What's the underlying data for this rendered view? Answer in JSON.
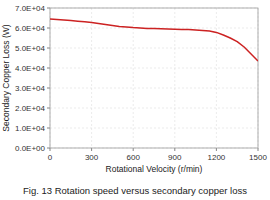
{
  "chart_data": {
    "type": "line",
    "title": "Fig. 13 Rotation speed versus secondary copper loss",
    "x_label": "Rotational Velocity (r/min)",
    "y_label": "Secondary Copper Loss (W)",
    "x": [
      0,
      50,
      100,
      150,
      200,
      250,
      300,
      350,
      400,
      450,
      500,
      550,
      600,
      650,
      700,
      750,
      800,
      850,
      900,
      950,
      1000,
      1050,
      1100,
      1150,
      1200,
      1250,
      1300,
      1350,
      1400,
      1450,
      1500
    ],
    "values": [
      64500,
      64300,
      64000,
      63700,
      63400,
      63100,
      62700,
      62300,
      61800,
      61300,
      60800,
      60500,
      60200,
      60000,
      59800,
      59700,
      59600,
      59500,
      59400,
      59300,
      59200,
      59000,
      58800,
      58500,
      57800,
      56500,
      55000,
      53200,
      50500,
      47000,
      43500
    ],
    "color": "#cc2222",
    "xlim": [
      0,
      1500
    ],
    "ylim": [
      0,
      70000
    ],
    "xticks": [
      0,
      300,
      600,
      900,
      1200,
      1500
    ],
    "yticks": [
      {
        "value": 0,
        "label": "0.0E+00"
      },
      {
        "value": 10000,
        "label": "1.0E+04"
      },
      {
        "value": 20000,
        "label": "2.0E+04"
      },
      {
        "value": 30000,
        "label": "3.0E+04"
      },
      {
        "value": 40000,
        "label": "4.0E+04"
      },
      {
        "value": 50000,
        "label": "5.0E+04"
      },
      {
        "value": 60000,
        "label": "6.0E+04"
      },
      {
        "value": 70000,
        "label": "7.0E+04"
      }
    ],
    "grid": true
  }
}
